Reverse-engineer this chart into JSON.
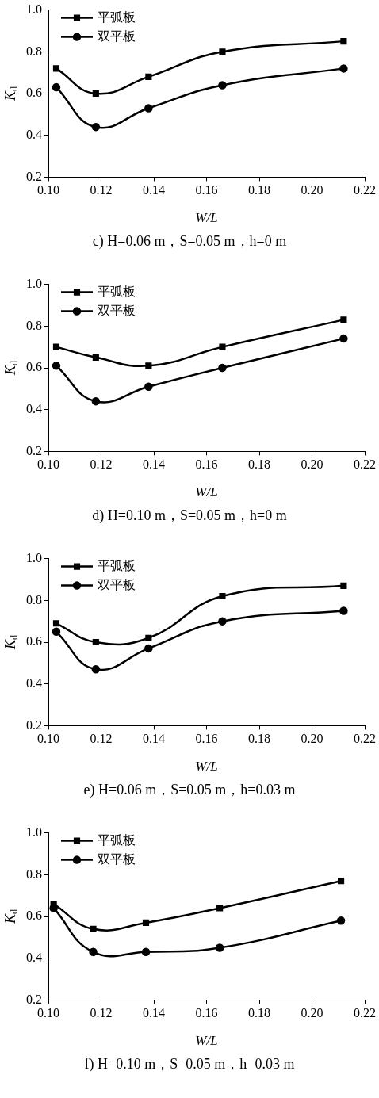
{
  "chart_data": [
    {
      "type": "line",
      "title": "c) H=0.06 m，S=0.05 m，h=0 m",
      "xlabel": "W/L",
      "ylabel": "K$_{d}$",
      "x": [
        0.103,
        0.118,
        0.138,
        0.166,
        0.212
      ],
      "series": [
        {
          "name": "平弧板",
          "color": "#000000",
          "marker": "square",
          "values": [
            0.72,
            0.6,
            0.68,
            0.8,
            0.85
          ]
        },
        {
          "name": "双平板",
          "color": "#000000",
          "marker": "circle",
          "values": [
            0.63,
            0.44,
            0.53,
            0.64,
            0.72
          ]
        }
      ],
      "xlim": [
        0.1,
        0.22
      ],
      "xticks": [
        {
          "value": 0.1,
          "label": "0.10"
        },
        {
          "value": 0.12,
          "label": "0.12"
        },
        {
          "value": 0.14,
          "label": "0.14"
        },
        {
          "value": 0.16,
          "label": "0.16"
        },
        {
          "value": 0.18,
          "label": "0.18"
        },
        {
          "value": 0.2,
          "label": "0.20"
        },
        {
          "value": 0.22,
          "label": "0.22"
        }
      ],
      "ylim": [
        0.2,
        1.0
      ],
      "yticks": [
        {
          "value": 0.2,
          "label": "0.2"
        },
        {
          "value": 0.4,
          "label": "0.4"
        },
        {
          "value": 0.6,
          "label": "0.6"
        },
        {
          "value": 0.8,
          "label": "0.8"
        },
        {
          "value": 1.0,
          "label": "1.0"
        }
      ],
      "grid": false,
      "legend": "top left",
      "line_style": "solid"
    },
    {
      "type": "line",
      "title": "d) H=0.10 m，S=0.05 m，h=0 m",
      "xlabel": "W/L",
      "ylabel": "K$_{d}$",
      "x": [
        0.103,
        0.118,
        0.138,
        0.166,
        0.212
      ],
      "series": [
        {
          "name": "平弧板",
          "color": "#000000",
          "marker": "square",
          "values": [
            0.7,
            0.65,
            0.61,
            0.7,
            0.83
          ]
        },
        {
          "name": "双平板",
          "color": "#000000",
          "marker": "circle",
          "values": [
            0.61,
            0.44,
            0.51,
            0.6,
            0.74
          ]
        }
      ],
      "xlim": [
        0.1,
        0.22
      ],
      "xticks": [
        {
          "value": 0.1,
          "label": "0.10"
        },
        {
          "value": 0.12,
          "label": "0.12"
        },
        {
          "value": 0.14,
          "label": "0.14"
        },
        {
          "value": 0.16,
          "label": "0.16"
        },
        {
          "value": 0.18,
          "label": "0.18"
        },
        {
          "value": 0.2,
          "label": "0.20"
        },
        {
          "value": 0.22,
          "label": "0.22"
        }
      ],
      "ylim": [
        0.2,
        1.0
      ],
      "yticks": [
        {
          "value": 0.2,
          "label": "0.2"
        },
        {
          "value": 0.4,
          "label": "0.4"
        },
        {
          "value": 0.6,
          "label": "0.6"
        },
        {
          "value": 0.8,
          "label": "0.8"
        },
        {
          "value": 1.0,
          "label": "1.0"
        }
      ],
      "grid": false,
      "legend": "top left",
      "line_style": "solid"
    },
    {
      "type": "line",
      "title": "e) H=0.06 m，S=0.05 m，h=0.03 m",
      "xlabel": "W/L",
      "ylabel": "K$_{d}$",
      "x": [
        0.103,
        0.118,
        0.138,
        0.166,
        0.212
      ],
      "series": [
        {
          "name": "平弧板",
          "color": "#000000",
          "marker": "square",
          "values": [
            0.69,
            0.6,
            0.62,
            0.82,
            0.87
          ]
        },
        {
          "name": "双平板",
          "color": "#000000",
          "marker": "circle",
          "values": [
            0.65,
            0.47,
            0.57,
            0.7,
            0.75
          ]
        }
      ],
      "xlim": [
        0.1,
        0.22
      ],
      "xticks": [
        {
          "value": 0.1,
          "label": "0.10"
        },
        {
          "value": 0.12,
          "label": "0.12"
        },
        {
          "value": 0.14,
          "label": "0.14"
        },
        {
          "value": 0.16,
          "label": "0.16"
        },
        {
          "value": 0.18,
          "label": "0.18"
        },
        {
          "value": 0.2,
          "label": "0.20"
        },
        {
          "value": 0.22,
          "label": "0.22"
        }
      ],
      "ylim": [
        0.2,
        1.0
      ],
      "yticks": [
        {
          "value": 0.2,
          "label": "0.2"
        },
        {
          "value": 0.4,
          "label": "0.4"
        },
        {
          "value": 0.6,
          "label": "0.6"
        },
        {
          "value": 0.8,
          "label": "0.8"
        },
        {
          "value": 1.0,
          "label": "1.0"
        }
      ],
      "grid": false,
      "legend": "top left",
      "line_style": "solid"
    },
    {
      "type": "line",
      "title": "f) H=0.10 m，S=0.05 m，h=0.03 m",
      "xlabel": "W/L",
      "ylabel": "K$_{d}$",
      "x": [
        0.102,
        0.117,
        0.137,
        0.165,
        0.211
      ],
      "series": [
        {
          "name": "平弧板",
          "color": "#000000",
          "marker": "square",
          "values": [
            0.66,
            0.54,
            0.57,
            0.64,
            0.77
          ]
        },
        {
          "name": "双平板",
          "color": "#000000",
          "marker": "circle",
          "values": [
            0.64,
            0.43,
            0.43,
            0.45,
            0.58
          ]
        }
      ],
      "xlim": [
        0.1,
        0.22
      ],
      "xticks": [
        {
          "value": 0.1,
          "label": "0.10"
        },
        {
          "value": 0.12,
          "label": "0.12"
        },
        {
          "value": 0.14,
          "label": "0.14"
        },
        {
          "value": 0.16,
          "label": "0.16"
        },
        {
          "value": 0.18,
          "label": "0.18"
        },
        {
          "value": 0.2,
          "label": "0.20"
        },
        {
          "value": 0.22,
          "label": "0.22"
        }
      ],
      "ylim": [
        0.2,
        1.0
      ],
      "yticks": [
        {
          "value": 0.2,
          "label": "0.2"
        },
        {
          "value": 0.4,
          "label": "0.4"
        },
        {
          "value": 0.6,
          "label": "0.6"
        },
        {
          "value": 0.8,
          "label": "0.8"
        },
        {
          "value": 1.0,
          "label": "1.0"
        }
      ],
      "grid": false,
      "legend": "top left",
      "line_style": "solid"
    }
  ]
}
